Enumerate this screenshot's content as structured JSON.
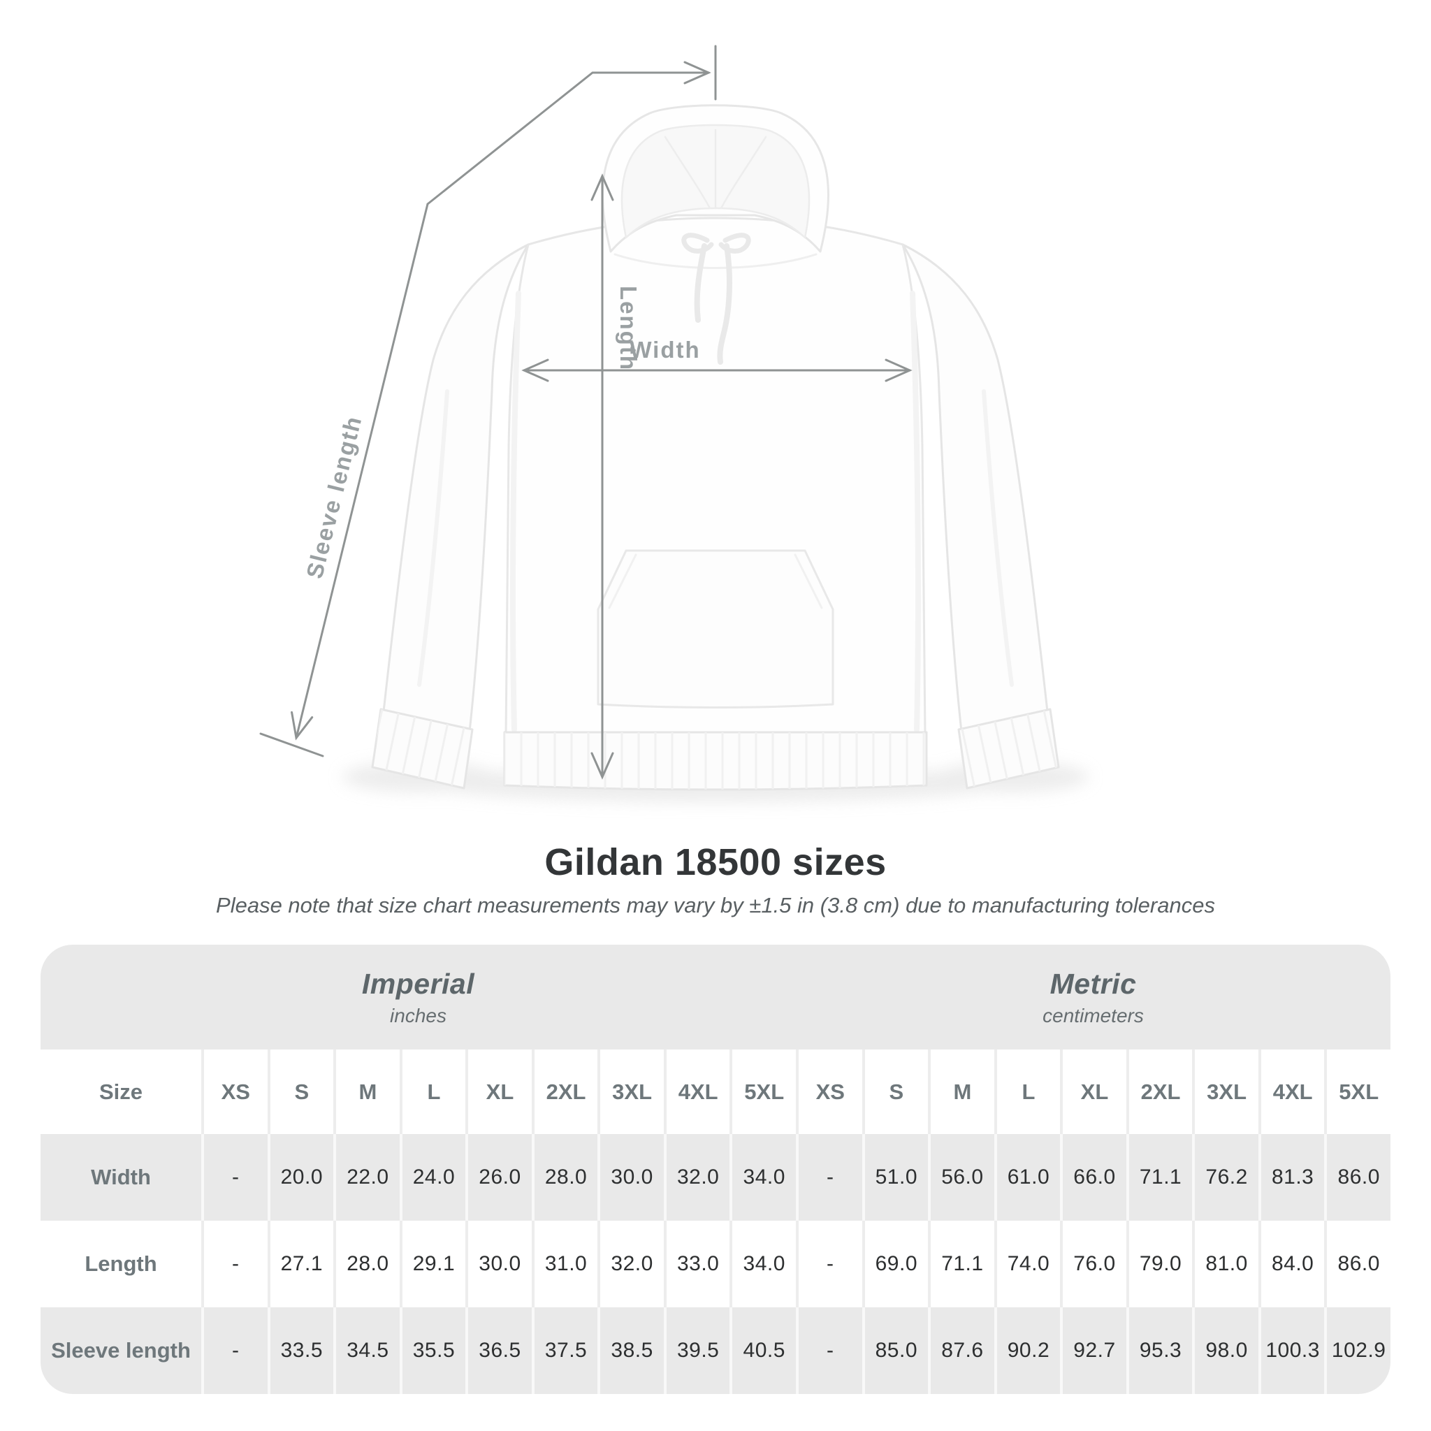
{
  "title": "Gildan 18500 sizes",
  "subtitle": "Please note that size chart measurements may vary by ±1.5 in (3.8 cm) due to manufacturing tolerances",
  "diagram": {
    "length_label": "Length",
    "width_label": "Width",
    "sleeve_label": "Sleeve length"
  },
  "colors": {
    "table_band": "#e9e9e9",
    "label_text": "#6e777b",
    "value_text": "#2d2f30",
    "measure_line": "#8f9393",
    "measure_label": "#9aa0a2"
  },
  "table": {
    "size_header": "Size",
    "group_headers": [
      {
        "label": "Imperial",
        "sublabel": "inches"
      },
      {
        "label": "Metric",
        "sublabel": "centimeters"
      }
    ],
    "size_columns": [
      "XS",
      "S",
      "M",
      "L",
      "XL",
      "2XL",
      "3XL",
      "4XL",
      "5XL",
      "XS",
      "S",
      "M",
      "L",
      "XL",
      "2XL",
      "3XL",
      "4XL",
      "5XL"
    ],
    "rows": [
      {
        "label": "Width",
        "values": [
          "-",
          "20.0",
          "22.0",
          "24.0",
          "26.0",
          "28.0",
          "30.0",
          "32.0",
          "34.0",
          "-",
          "51.0",
          "56.0",
          "61.0",
          "66.0",
          "71.1",
          "76.2",
          "81.3",
          "86.0"
        ]
      },
      {
        "label": "Length",
        "values": [
          "-",
          "27.1",
          "28.0",
          "29.1",
          "30.0",
          "31.0",
          "32.0",
          "33.0",
          "34.0",
          "-",
          "69.0",
          "71.1",
          "74.0",
          "76.0",
          "79.0",
          "81.0",
          "84.0",
          "86.0"
        ]
      },
      {
        "label": "Sleeve length",
        "values": [
          "-",
          "33.5",
          "34.5",
          "35.5",
          "36.5",
          "37.5",
          "38.5",
          "39.5",
          "40.5",
          "-",
          "85.0",
          "87.6",
          "90.2",
          "92.7",
          "95.3",
          "98.0",
          "100.3",
          "102.9"
        ]
      }
    ]
  },
  "chart_data": {
    "type": "table",
    "title": "Gildan 18500 sizes",
    "note": "Measurements may vary by ±1.5 in (3.8 cm) due to manufacturing tolerances",
    "columns": [
      "XS",
      "S",
      "M",
      "L",
      "XL",
      "2XL",
      "3XL",
      "4XL",
      "5XL"
    ],
    "units": {
      "imperial": "inches",
      "metric": "centimeters"
    },
    "imperial": {
      "Width": [
        null,
        20.0,
        22.0,
        24.0,
        26.0,
        28.0,
        30.0,
        32.0,
        34.0
      ],
      "Length": [
        null,
        27.1,
        28.0,
        29.1,
        30.0,
        31.0,
        32.0,
        33.0,
        34.0
      ],
      "Sleeve length": [
        null,
        33.5,
        34.5,
        35.5,
        36.5,
        37.5,
        38.5,
        39.5,
        40.5
      ]
    },
    "metric": {
      "Width": [
        null,
        51.0,
        56.0,
        61.0,
        66.0,
        71.1,
        76.2,
        81.3,
        86.0
      ],
      "Length": [
        null,
        69.0,
        71.1,
        74.0,
        76.0,
        79.0,
        81.0,
        84.0,
        86.0
      ],
      "Sleeve length": [
        null,
        85.0,
        87.6,
        90.2,
        92.7,
        95.3,
        98.0,
        100.3,
        102.9
      ]
    }
  }
}
